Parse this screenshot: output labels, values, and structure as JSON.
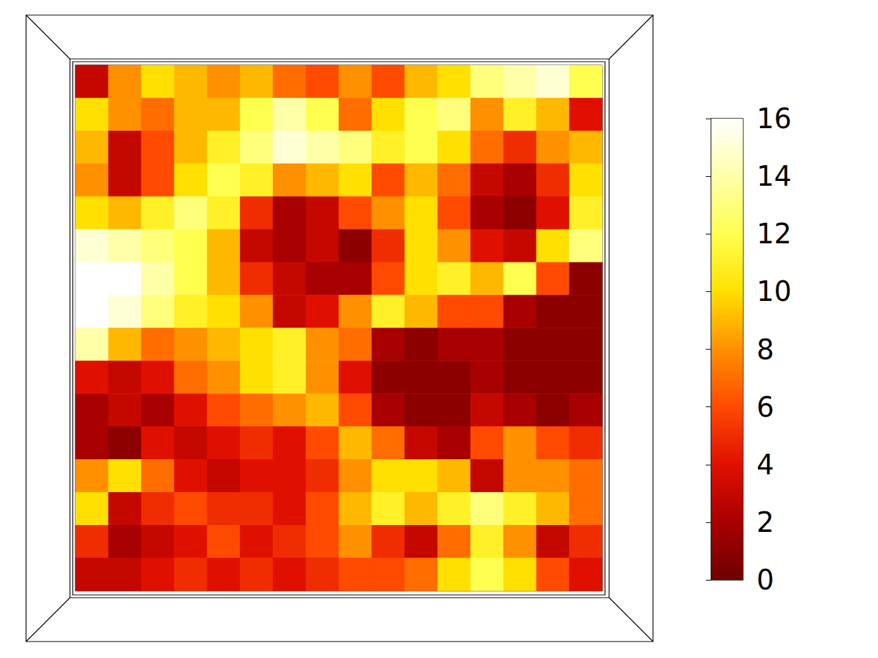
{
  "chart_data": {
    "type": "heatmap",
    "tick_labels": false,
    "cells": [
      [
        3,
        8,
        10,
        9,
        8,
        9,
        7,
        6,
        8,
        6,
        9,
        10,
        13,
        14,
        15,
        12
      ],
      [
        10,
        8,
        7,
        9,
        9,
        12,
        14,
        12,
        7,
        10,
        12,
        13,
        8,
        11,
        9,
        4
      ],
      [
        9,
        3,
        6,
        9,
        11,
        13,
        15,
        14,
        13,
        11,
        12,
        10,
        7,
        5,
        8,
        9
      ],
      [
        8,
        3,
        6,
        10,
        12,
        11,
        8,
        9,
        10,
        6,
        9,
        7,
        3,
        2,
        5,
        10
      ],
      [
        10,
        9,
        11,
        13,
        11,
        5,
        2,
        3,
        6,
        8,
        10,
        6,
        2,
        1,
        4,
        11
      ],
      [
        15,
        14,
        13,
        12,
        9,
        3,
        2,
        3,
        1,
        5,
        10,
        8,
        4,
        3,
        10,
        13
      ],
      [
        16,
        16,
        14,
        12,
        9,
        5,
        3,
        2,
        2,
        6,
        10,
        11,
        9,
        12,
        6,
        1
      ],
      [
        16,
        15,
        13,
        11,
        10,
        8,
        3,
        4,
        8,
        11,
        9,
        6,
        6,
        2,
        1,
        1
      ],
      [
        14,
        9,
        7,
        8,
        9,
        10,
        11,
        8,
        7,
        2,
        1,
        2,
        2,
        1,
        1,
        1
      ],
      [
        4,
        3,
        4,
        7,
        8,
        10,
        11,
        8,
        4,
        1,
        1,
        1,
        2,
        1,
        1,
        1
      ],
      [
        2,
        3,
        2,
        4,
        6,
        7,
        8,
        9,
        6,
        2,
        1,
        1,
        3,
        2,
        1,
        2
      ],
      [
        2,
        1,
        4,
        3,
        4,
        5,
        4,
        6,
        9,
        7,
        3,
        2,
        6,
        8,
        6,
        5
      ],
      [
        8,
        10,
        7,
        4,
        3,
        4,
        4,
        5,
        8,
        10,
        10,
        9,
        3,
        8,
        8,
        7
      ],
      [
        10,
        3,
        5,
        6,
        5,
        5,
        4,
        6,
        9,
        11,
        9,
        11,
        13,
        11,
        9,
        7
      ],
      [
        5,
        2,
        3,
        4,
        6,
        4,
        5,
        6,
        8,
        5,
        3,
        7,
        11,
        8,
        3,
        5
      ],
      [
        3,
        3,
        4,
        5,
        4,
        5,
        4,
        5,
        6,
        6,
        7,
        10,
        12,
        10,
        6,
        4
      ]
    ],
    "colorbar_range": [
      0,
      16
    ],
    "colorbar_ticks": [
      0,
      2,
      4,
      6,
      8,
      10,
      12,
      14,
      16
    ]
  }
}
